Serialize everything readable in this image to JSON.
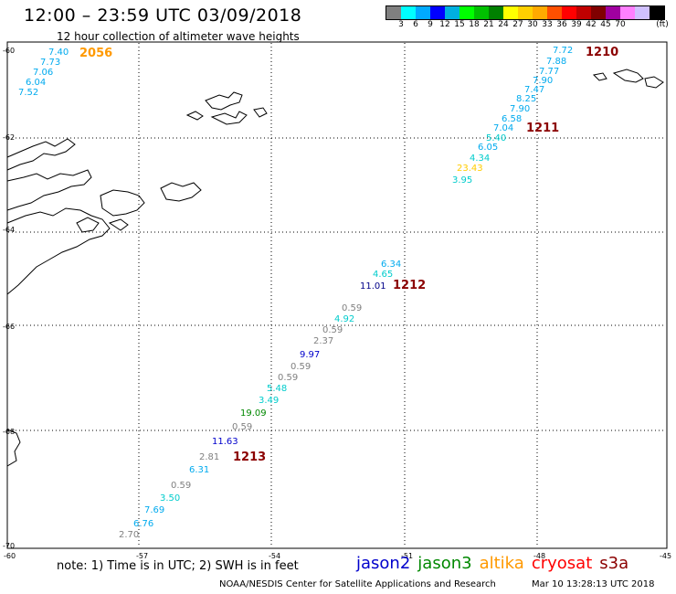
{
  "header": {
    "title": "12:00 – 23:59 UTC 03/09/2018",
    "subtitle": "12 hour collection of altimeter wave heights"
  },
  "legend": {
    "colors": [
      "#808080",
      "#00ffff",
      "#00aaff",
      "#0000ff",
      "#00b0e0",
      "#00ff00",
      "#00c000",
      "#008000",
      "#ffff00",
      "#ffd000",
      "#ffaa00",
      "#ff5000",
      "#ff0000",
      "#c00000",
      "#800000",
      "#a000a0",
      "#ff80ff",
      "#d0c0ff",
      "#000000"
    ],
    "labels": [
      "3",
      "6",
      "9",
      "12",
      "15",
      "18",
      "21",
      "24",
      "27",
      "30",
      "33",
      "36",
      "39",
      "42",
      "45",
      "70"
    ],
    "unit": "(ft)"
  },
  "axes": {
    "lat_labels": [
      "-60",
      "-62",
      "-64",
      "-66",
      "-68",
      "-70"
    ],
    "lon_labels": [
      "-60",
      "-57",
      "-54",
      "-51",
      "-48",
      "-45"
    ]
  },
  "times": [
    {
      "label": "2056",
      "color": "#ff9900"
    },
    {
      "label": "1210",
      "color": "#8b0000"
    },
    {
      "label": "1211",
      "color": "#8b0000"
    },
    {
      "label": "1212",
      "color": "#8b0000"
    },
    {
      "label": "1213",
      "color": "#8b0000"
    }
  ],
  "swh_values": [
    {
      "v": "7.40",
      "c": "#00aaee"
    },
    {
      "v": "7.73",
      "c": "#00aaee"
    },
    {
      "v": "7.06",
      "c": "#00aaee"
    },
    {
      "v": "6.04",
      "c": "#00aaee"
    },
    {
      "v": "7.52",
      "c": "#00aaee"
    },
    {
      "v": "7.72",
      "c": "#00aaee"
    },
    {
      "v": "7.88",
      "c": "#00aaee"
    },
    {
      "v": "7.77",
      "c": "#00aaee"
    },
    {
      "v": "7.90",
      "c": "#00aaee"
    },
    {
      "v": "7.47",
      "c": "#00aaee"
    },
    {
      "v": "8.25",
      "c": "#00aaee"
    },
    {
      "v": "7.90",
      "c": "#00aaee"
    },
    {
      "v": "6.58",
      "c": "#00aaee"
    },
    {
      "v": "7.04",
      "c": "#00aaee"
    },
    {
      "v": "5.40",
      "c": "#00cccc"
    },
    {
      "v": "6.05",
      "c": "#00aaee"
    },
    {
      "v": "4.34",
      "c": "#00cccc"
    },
    {
      "v": "23.43",
      "c": "#ffcc00"
    },
    {
      "v": "3.95",
      "c": "#00cccc"
    },
    {
      "v": "6.34",
      "c": "#00aaee"
    },
    {
      "v": "4.65",
      "c": "#00cccc"
    },
    {
      "v": "11.01",
      "c": "#000088"
    },
    {
      "v": "0.59",
      "c": "#808080"
    },
    {
      "v": "4.92",
      "c": "#00cccc"
    },
    {
      "v": "0.59",
      "c": "#808080"
    },
    {
      "v": "2.37",
      "c": "#808080"
    },
    {
      "v": "9.97",
      "c": "#0000cc"
    },
    {
      "v": "0.59",
      "c": "#808080"
    },
    {
      "v": "0.59",
      "c": "#808080"
    },
    {
      "v": "5.48",
      "c": "#00cccc"
    },
    {
      "v": "3.49",
      "c": "#00cccc"
    },
    {
      "v": "19.09",
      "c": "#008800"
    },
    {
      "v": "0.59",
      "c": "#808080"
    },
    {
      "v": "11.63",
      "c": "#0000cc"
    },
    {
      "v": "2.81",
      "c": "#808080"
    },
    {
      "v": "6.31",
      "c": "#00aaee"
    },
    {
      "v": "0.59",
      "c": "#808080"
    },
    {
      "v": "3.50",
      "c": "#00cccc"
    },
    {
      "v": "7.69",
      "c": "#00aaee"
    },
    {
      "v": "6.76",
      "c": "#00aaee"
    },
    {
      "v": "2.70",
      "c": "#808080"
    }
  ],
  "footer": {
    "note": "note: 1) Time is in UTC; 2) SWH is in feet",
    "satellites": [
      {
        "name": "jason2",
        "color": "#0000cc"
      },
      {
        "name": "jason3",
        "color": "#008800"
      },
      {
        "name": "altika",
        "color": "#ff9900"
      },
      {
        "name": "cryosat",
        "color": "#ff0000"
      },
      {
        "name": "s3a",
        "color": "#8b0000"
      }
    ],
    "credit": "NOAA/NESDIS Center for Satellite Applications and Research",
    "timestamp": "Mar 10 13:28:13 UTC 2018"
  }
}
